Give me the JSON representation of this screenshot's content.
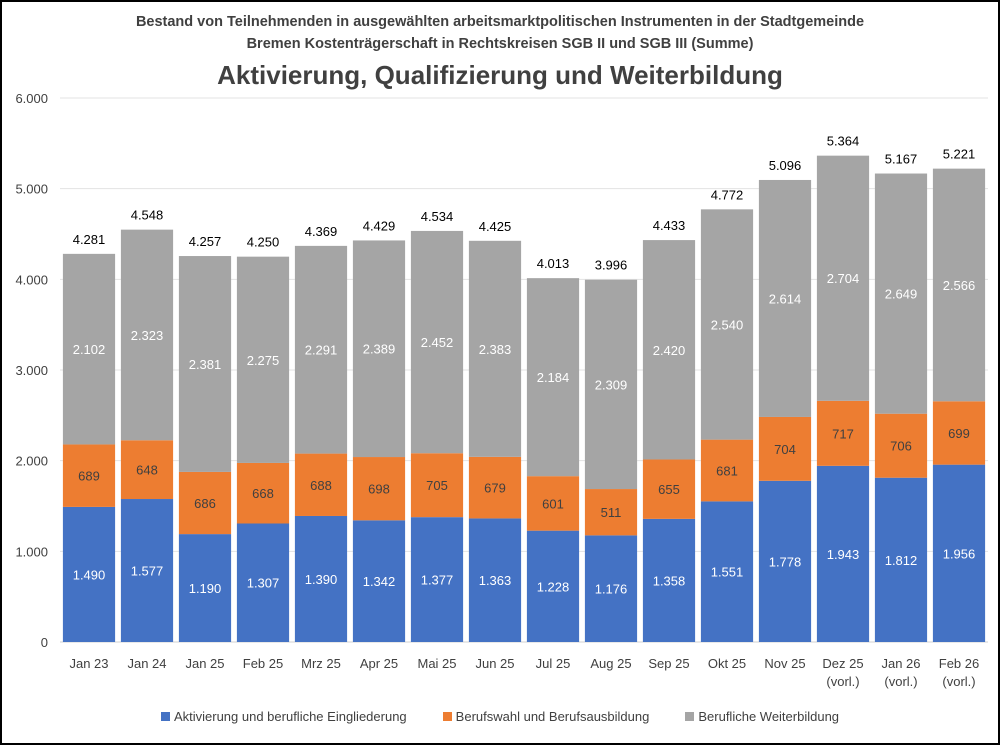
{
  "chart_data": {
    "type": "bar",
    "stacked": true,
    "subtitle_lines": [
      "Bestand von Teilnehmenden in ausgewählten arbeitsmarktpolitischen Instrumenten in der Stadtgemeinde",
      "Bremen Kostenträgerschaft in Rechtskreisen SGB II und SGB III (Summe)"
    ],
    "title": "Aktivierung, Qualifizierung und Weiterbildung",
    "categories": [
      [
        "Jan 23"
      ],
      [
        "Jan 24"
      ],
      [
        "Jan 25"
      ],
      [
        "Feb 25"
      ],
      [
        "Mrz 25"
      ],
      [
        "Apr 25"
      ],
      [
        "Mai 25"
      ],
      [
        "Jun 25"
      ],
      [
        "Jul 25"
      ],
      [
        "Aug 25"
      ],
      [
        "Sep 25"
      ],
      [
        "Okt 25"
      ],
      [
        "Nov 25"
      ],
      [
        "Dez 25",
        "(vorl.)"
      ],
      [
        "Jan 26",
        "(vorl.)"
      ],
      [
        "Feb 26",
        "(vorl.)"
      ]
    ],
    "series": [
      {
        "name": "Aktivierung und berufliche Eingliederung",
        "color": "#4472C4",
        "values": [
          1490,
          1577,
          1190,
          1307,
          1390,
          1342,
          1377,
          1363,
          1228,
          1176,
          1358,
          1551,
          1778,
          1943,
          1812,
          1956
        ],
        "labels": [
          "1.490",
          "1.577",
          "1.190",
          "1.307",
          "1.390",
          "1.342",
          "1.377",
          "1.363",
          "1.228",
          "1.176",
          "1.358",
          "1.551",
          "1.778",
          "1.943",
          "1.812",
          "1.956"
        ]
      },
      {
        "name": "Berufswahl und Berufsausbildung",
        "color": "#ED7D31",
        "values": [
          689,
          648,
          686,
          668,
          688,
          698,
          705,
          679,
          601,
          511,
          655,
          681,
          704,
          717,
          706,
          699
        ],
        "labels": [
          "689",
          "648",
          "686",
          "668",
          "688",
          "698",
          "705",
          "679",
          "601",
          "511",
          "655",
          "681",
          "704",
          "717",
          "706",
          "699"
        ]
      },
      {
        "name": "Berufliche Weiterbildung",
        "color": "#A5A5A5",
        "values": [
          2102,
          2323,
          2381,
          2275,
          2291,
          2389,
          2452,
          2383,
          2184,
          2309,
          2420,
          2540,
          2614,
          2704,
          2649,
          2566
        ],
        "labels": [
          "2.102",
          "2.323",
          "2.381",
          "2.275",
          "2.291",
          "2.389",
          "2.452",
          "2.383",
          "2.184",
          "2.309",
          "2.420",
          "2.540",
          "2.614",
          "2.704",
          "2.649",
          "2.566"
        ]
      }
    ],
    "totals": [
      4281,
      4548,
      4257,
      4250,
      4369,
      4429,
      4534,
      4425,
      4013,
      3996,
      4433,
      4772,
      5096,
      5364,
      5167,
      5221
    ],
    "total_labels": [
      "4.281",
      "4.548",
      "4.257",
      "4.250",
      "4.369",
      "4.429",
      "4.534",
      "4.425",
      "4.013",
      "3.996",
      "4.433",
      "4.772",
      "5.096",
      "5.364",
      "5.167",
      "5.221"
    ],
    "yticks": [
      0,
      1000,
      2000,
      3000,
      4000,
      5000,
      6000
    ],
    "ytick_labels": [
      "0",
      "1.000",
      "2.000",
      "3.000",
      "4.000",
      "5.000",
      "6.000"
    ],
    "ylim": [
      0,
      6000
    ],
    "xlabel": "",
    "ylabel": "",
    "grid": true,
    "legend_position": "bottom"
  }
}
